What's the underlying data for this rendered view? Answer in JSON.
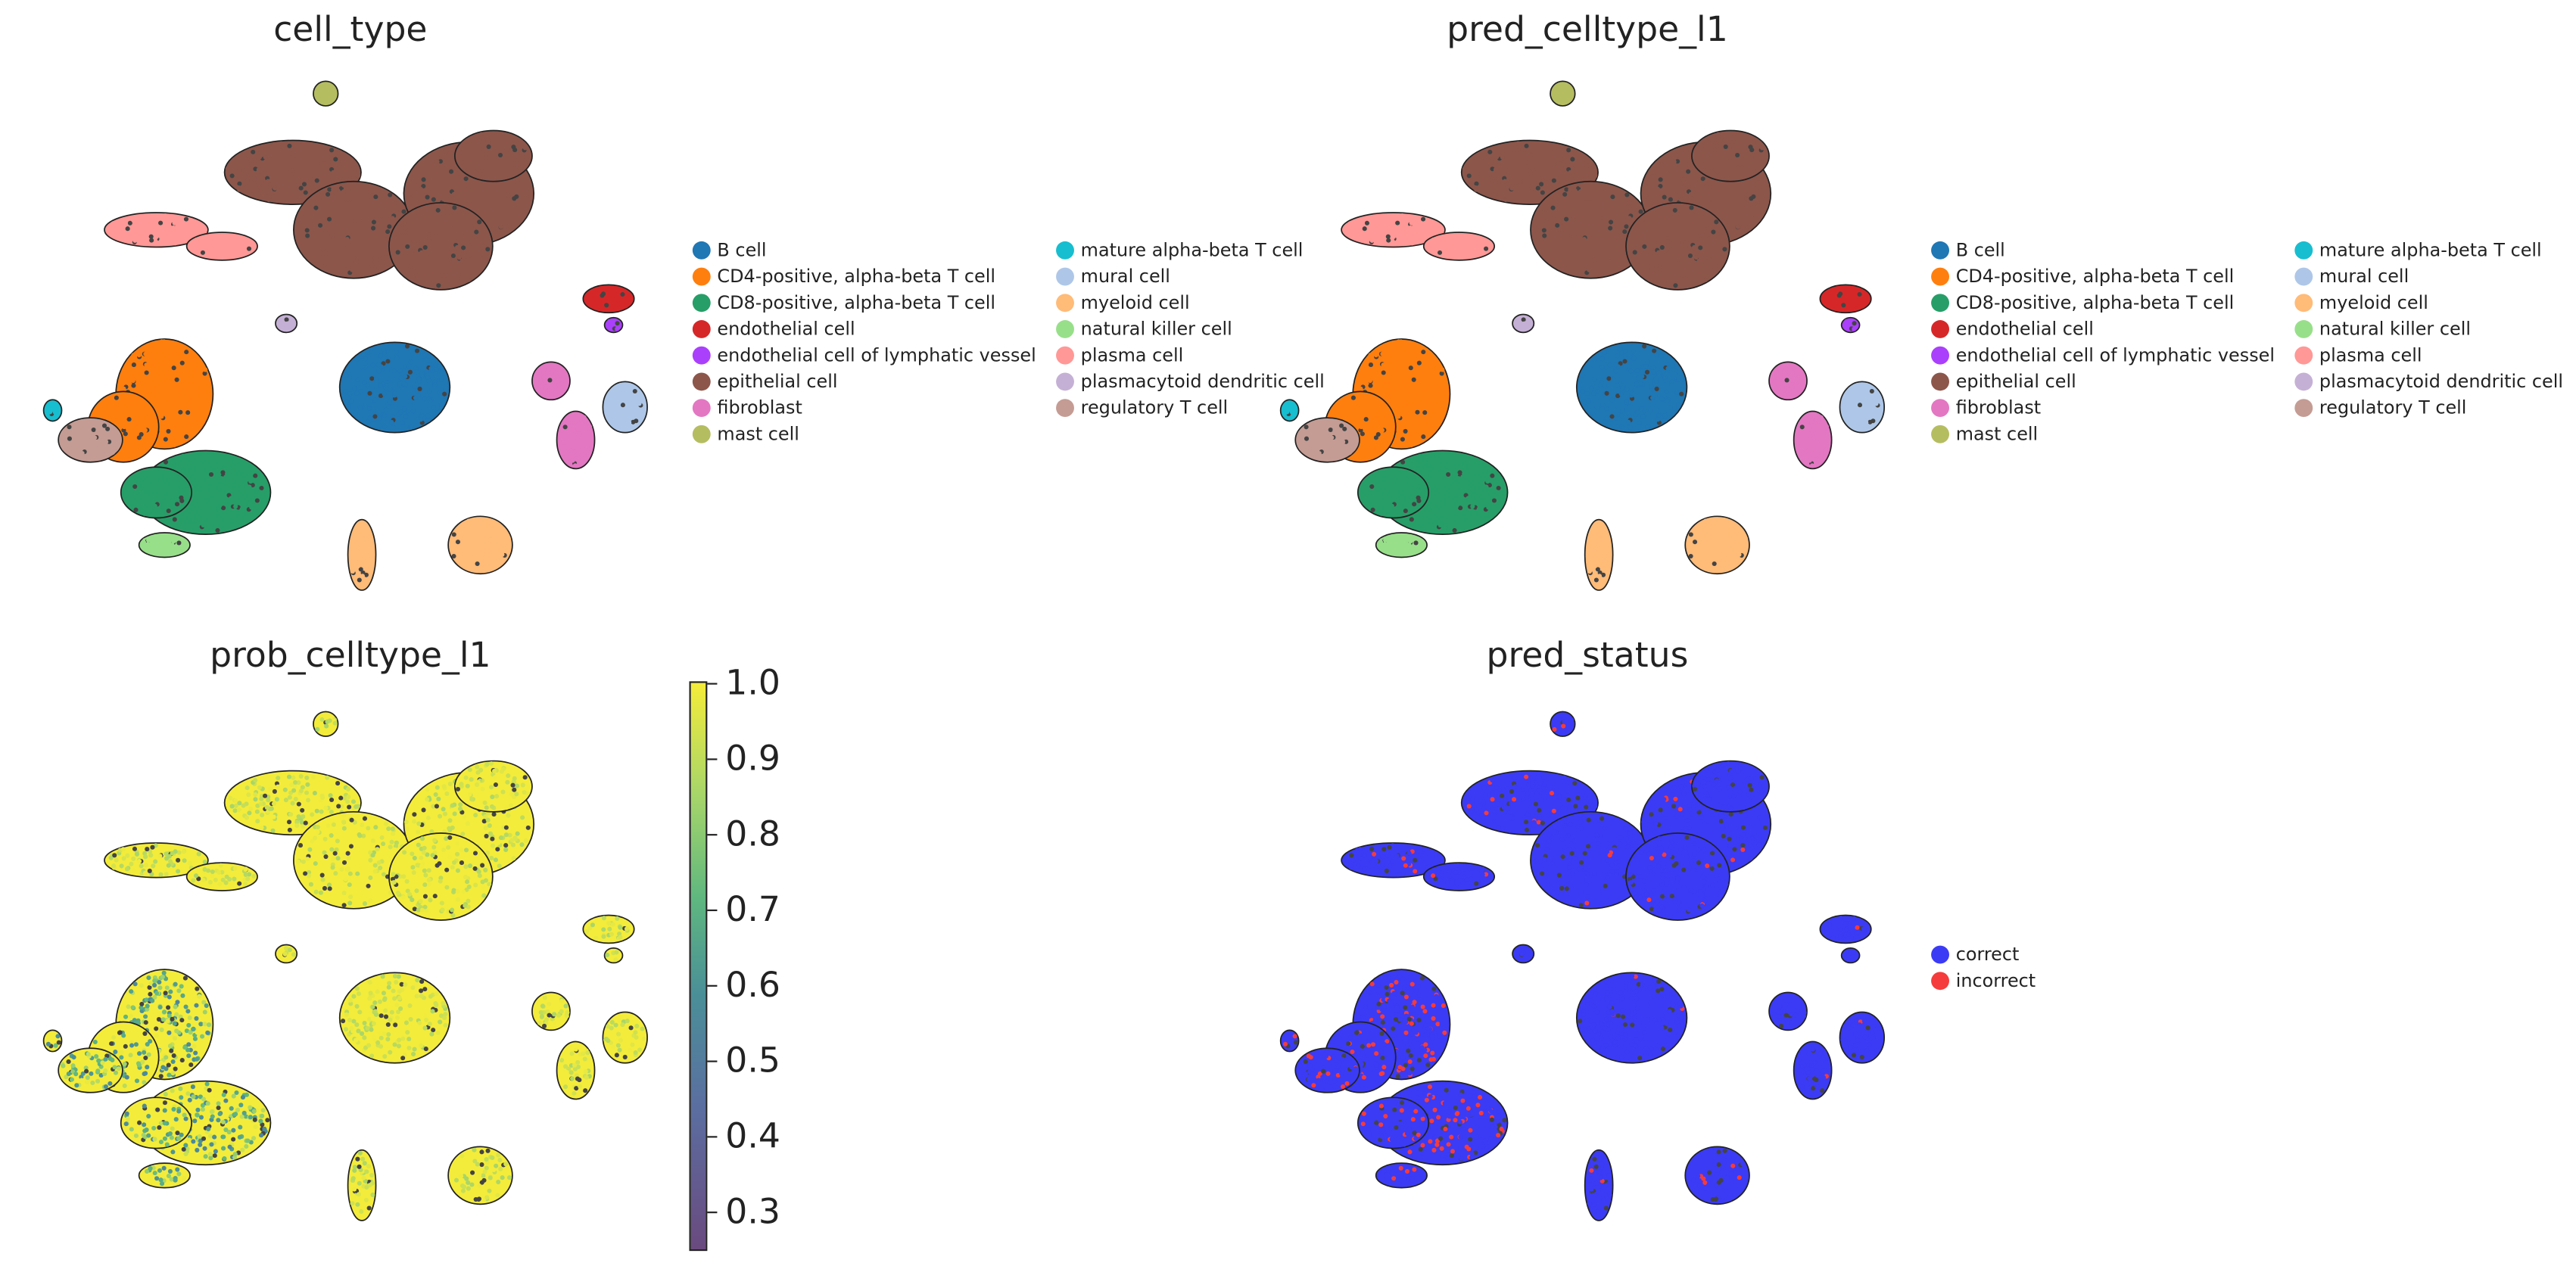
{
  "colors": {
    "B cell": "#1f77b4",
    "CD4-positive, alpha-beta T cell": "#ff7f0e",
    "CD8-positive, alpha-beta T cell": "#279e68",
    "endothelial cell": "#d62728",
    "endothelial cell of lymphatic vessel": "#aa40fc",
    "epithelial cell": "#8c564b",
    "fibroblast": "#e377c2",
    "mast cell": "#b5bd61",
    "mature alpha-beta T cell": "#17becf",
    "mural cell": "#aec7e8",
    "myeloid cell": "#ffbb78",
    "natural killer cell": "#98df8a",
    "plasma cell": "#ff9896",
    "plasmacytoid dendritic cell": "#c5b0d5",
    "regulatory T cell": "#c49c94",
    "correct": "#3b3bf5",
    "incorrect": "#f53b3b"
  },
  "chart_data": [
    {
      "type": "scatter",
      "title": "cell_type",
      "legend": [
        "B cell",
        "CD4-positive, alpha-beta T cell",
        "CD8-positive, alpha-beta T cell",
        "endothelial cell",
        "endothelial cell of lymphatic vessel",
        "epithelial cell",
        "fibroblast",
        "mast cell",
        "mature alpha-beta T cell",
        "mural cell",
        "myeloid cell",
        "natural killer cell",
        "plasma cell",
        "plasmacytoid dendritic cell",
        "regulatory T cell"
      ],
      "legend_placement": "right",
      "grid": false
    },
    {
      "type": "scatter",
      "title": "pred_celltype_l1",
      "legend": [
        "B cell",
        "CD4-positive, alpha-beta T cell",
        "CD8-positive, alpha-beta T cell",
        "endothelial cell",
        "endothelial cell of lymphatic vessel",
        "epithelial cell",
        "fibroblast",
        "mast cell",
        "mature alpha-beta T cell",
        "mural cell",
        "myeloid cell",
        "natural killer cell",
        "plasma cell",
        "plasmacytoid dendritic cell",
        "regulatory T cell"
      ],
      "legend_placement": "right",
      "grid": false
    },
    {
      "type": "scatter",
      "title": "prob_celltype_l1",
      "colorbar": {
        "range": [
          0.25,
          1.0
        ],
        "ticks": [
          "1.0",
          "0.9",
          "0.8",
          "0.7",
          "0.6",
          "0.5",
          "0.4",
          "0.3"
        ],
        "tick_values": [
          1.0,
          0.9,
          0.8,
          0.7,
          0.6,
          0.5,
          0.4,
          0.3
        ]
      },
      "grid": false
    },
    {
      "type": "scatter",
      "title": "pred_status",
      "legend": [
        "correct",
        "incorrect"
      ],
      "legend_placement": "right",
      "grid": false
    }
  ]
}
